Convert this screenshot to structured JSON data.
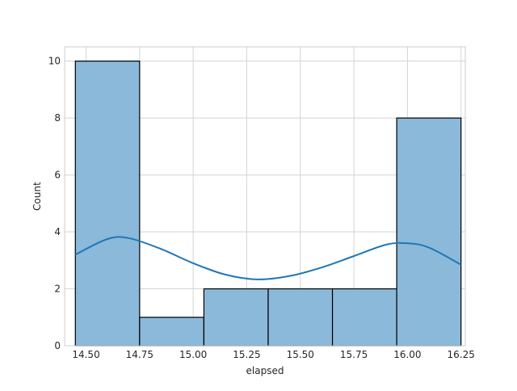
{
  "chart_data": {
    "type": "bar",
    "subtype": "histogram_with_kde",
    "title": "",
    "xlabel": "elapsed",
    "ylabel": "Count",
    "xlim": [
      14.4,
      16.27
    ],
    "ylim": [
      0,
      10.5
    ],
    "x_ticks": [
      14.5,
      14.75,
      15.0,
      15.25,
      15.5,
      15.75,
      16.0,
      16.25
    ],
    "x_tick_labels": [
      "14.50",
      "14.75",
      "15.00",
      "15.25",
      "15.50",
      "15.75",
      "16.00",
      "16.25"
    ],
    "y_ticks": [
      0,
      2,
      4,
      6,
      8,
      10
    ],
    "y_tick_labels": [
      "0",
      "2",
      "4",
      "6",
      "8",
      "10"
    ],
    "grid": true,
    "bins": [
      {
        "x0": 14.45,
        "x1": 14.75,
        "count": 10
      },
      {
        "x0": 14.75,
        "x1": 15.05,
        "count": 1
      },
      {
        "x0": 15.05,
        "x1": 15.35,
        "count": 2
      },
      {
        "x0": 15.35,
        "x1": 15.65,
        "count": 2
      },
      {
        "x0": 15.65,
        "x1": 15.95,
        "count": 2
      },
      {
        "x0": 15.95,
        "x1": 16.25,
        "count": 8
      }
    ],
    "kde": {
      "x": [
        14.45,
        14.6,
        14.7,
        14.85,
        15.0,
        15.15,
        15.3,
        15.45,
        15.6,
        15.75,
        15.9,
        16.0,
        16.1,
        16.25
      ],
      "y": [
        3.2,
        3.75,
        3.78,
        3.4,
        2.9,
        2.5,
        2.33,
        2.45,
        2.75,
        3.15,
        3.55,
        3.6,
        3.45,
        2.85
      ]
    },
    "colors": {
      "bar_fill": "#8bb9da",
      "bar_edge": "#000000",
      "kde_line": "#1f77b4",
      "grid": "#d3d3d3",
      "axes_edge": "#cccccc"
    }
  }
}
